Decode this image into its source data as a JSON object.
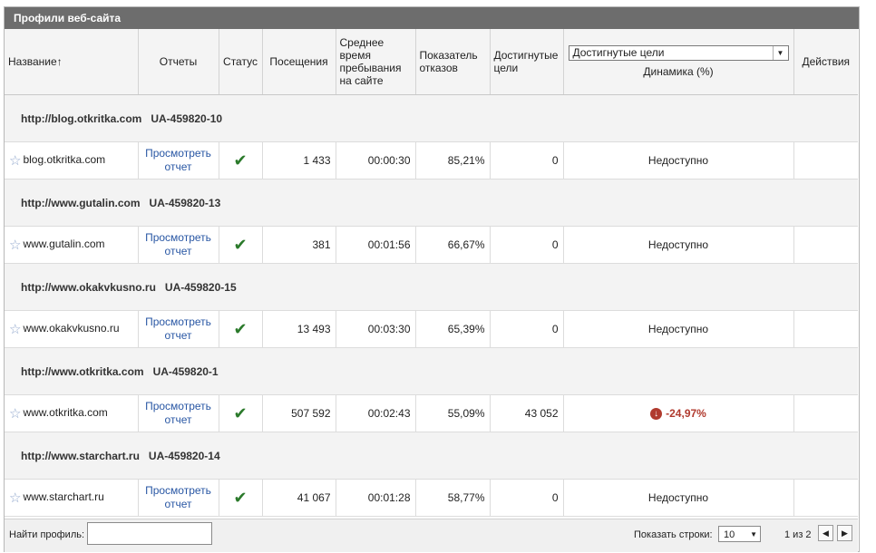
{
  "panel": {
    "title": "Профили веб-сайта"
  },
  "header": {
    "name": "Название",
    "sort_icon": "arrow-up",
    "reports": "Отчеты",
    "status": "Статус",
    "visits": "Посещения",
    "avg_time": "Среднее время пребывания на сайте",
    "bounce": "Показатель отказов",
    "goals": "Достигнутые цели",
    "metric_select": "Достигнутые цели",
    "dynamics": "Динамика (%)",
    "actions": "Действия"
  },
  "rows": [
    {
      "group": "http://blog.otkritka.com",
      "account": "UA-459820-10",
      "name": "blog.otkritka.com",
      "link": "Просмотреть отчет",
      "visits": "1 433",
      "time": "00:00:30",
      "bounce": "85,21%",
      "goals": "0",
      "dynamics": "Недоступно"
    },
    {
      "group": "http://www.gutalin.com",
      "account": "UA-459820-13",
      "name": "www.gutalin.com",
      "link": "Просмотреть отчет",
      "visits": "381",
      "time": "00:01:56",
      "bounce": "66,67%",
      "goals": "0",
      "dynamics": "Недоступно"
    },
    {
      "group": "http://www.okakvkusno.ru",
      "account": "UA-459820-15",
      "name": "www.okakvkusno.ru",
      "link": "Просмотреть отчет",
      "visits": "13 493",
      "time": "00:03:30",
      "bounce": "65,39%",
      "goals": "0",
      "dynamics": "Недоступно"
    },
    {
      "group": "http://www.otkritka.com",
      "account": "UA-459820-1",
      "name": "www.otkritka.com",
      "link": "Просмотреть отчет",
      "visits": "507 592",
      "time": "00:02:43",
      "bounce": "55,09%",
      "goals": "43 052",
      "dynamics": "-24,97%"
    },
    {
      "group": "http://www.starchart.ru",
      "account": "UA-459820-14",
      "name": "www.starchart.ru",
      "link": "Просмотреть отчет",
      "visits": "41 067",
      "time": "00:01:28",
      "bounce": "58,77%",
      "goals": "0",
      "dynamics": "Недоступно"
    }
  ],
  "footer": {
    "search_label": "Найти профиль:",
    "search_value": "",
    "rows_label": "Показать строки:",
    "rows_value": "10",
    "page_info": "1 из 2"
  },
  "colors": {
    "title_bar": "#6d6d6d",
    "link": "#2957a4",
    "negative": "#b03a2e",
    "check": "#2b7a2b"
  }
}
